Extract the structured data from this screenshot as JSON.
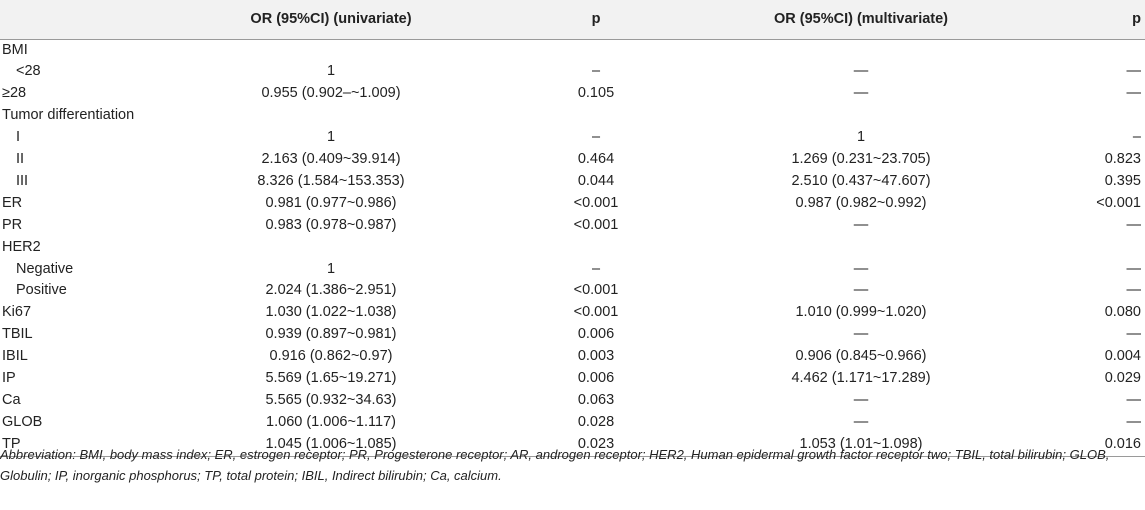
{
  "table": {
    "headers": [
      "",
      "OR (95%CI) (univariate)",
      "p",
      "OR (95%CI) (multivariate)",
      "p"
    ],
    "rows": [
      {
        "label": "BMI",
        "indent": false,
        "or_uni": "",
        "p_uni": "",
        "or_multi": "",
        "p_multi": ""
      },
      {
        "label": "<28",
        "indent": true,
        "or_uni": "1",
        "p_uni": "–",
        "or_multi": "—",
        "p_multi": "—"
      },
      {
        "label": "≥28",
        "indent": false,
        "or_uni": "0.955 (0.902–~1.009)",
        "p_uni": "0.105",
        "or_multi": "—",
        "p_multi": "—"
      },
      {
        "label": "Tumor differentiation",
        "indent": false,
        "or_uni": "",
        "p_uni": "",
        "or_multi": "",
        "p_multi": ""
      },
      {
        "label": "I",
        "indent": true,
        "or_uni": "1",
        "p_uni": "–",
        "or_multi": "1",
        "p_multi": "–"
      },
      {
        "label": "II",
        "indent": true,
        "or_uni": "2.163 (0.409~39.914)",
        "p_uni": "0.464",
        "or_multi": "1.269 (0.231~23.705)",
        "p_multi": "0.823"
      },
      {
        "label": "III",
        "indent": true,
        "or_uni": "8.326 (1.584~153.353)",
        "p_uni": "0.044",
        "or_multi": "2.510 (0.437~47.607)",
        "p_multi": "0.395"
      },
      {
        "label": "ER",
        "indent": false,
        "or_uni": "0.981 (0.977~0.986)",
        "p_uni": "<0.001",
        "or_multi": "0.987 (0.982~0.992)",
        "p_multi": "<0.001"
      },
      {
        "label": "PR",
        "indent": false,
        "or_uni": "0.983 (0.978~0.987)",
        "p_uni": "<0.001",
        "or_multi": "—",
        "p_multi": "—"
      },
      {
        "label": "HER2",
        "indent": false,
        "or_uni": "",
        "p_uni": "",
        "or_multi": "",
        "p_multi": ""
      },
      {
        "label": "Negative",
        "indent": true,
        "or_uni": "1",
        "p_uni": "–",
        "or_multi": "—",
        "p_multi": "—"
      },
      {
        "label": "Positive",
        "indent": true,
        "or_uni": "2.024 (1.386~2.951)",
        "p_uni": "<0.001",
        "or_multi": "—",
        "p_multi": "—"
      },
      {
        "label": "Ki67",
        "indent": false,
        "or_uni": "1.030 (1.022~1.038)",
        "p_uni": "<0.001",
        "or_multi": "1.010 (0.999~1.020)",
        "p_multi": "0.080"
      },
      {
        "label": "TBIL",
        "indent": false,
        "or_uni": "0.939 (0.897~0.981)",
        "p_uni": "0.006",
        "or_multi": "—",
        "p_multi": "—"
      },
      {
        "label": "IBIL",
        "indent": false,
        "or_uni": "0.916 (0.862~0.97)",
        "p_uni": "0.003",
        "or_multi": "0.906 (0.845~0.966)",
        "p_multi": "0.004"
      },
      {
        "label": "IP",
        "indent": false,
        "or_uni": "5.569 (1.65~19.271)",
        "p_uni": "0.006",
        "or_multi": "4.462 (1.171~17.289)",
        "p_multi": "0.029"
      },
      {
        "label": "Ca",
        "indent": false,
        "or_uni": "5.565 (0.932~34.63)",
        "p_uni": "0.063",
        "or_multi": "—",
        "p_multi": "—"
      },
      {
        "label": "GLOB",
        "indent": false,
        "or_uni": "1.060 (1.006~1.117)",
        "p_uni": "0.028",
        "or_multi": "—",
        "p_multi": "—"
      },
      {
        "label": "TP",
        "indent": false,
        "or_uni": "1.045 (1.006~1.085)",
        "p_uni": "0.023",
        "or_multi": "1.053 (1.01~1.098)",
        "p_multi": "0.016"
      }
    ]
  },
  "footnote": "Abbreviation: BMI, body mass index; ER, estrogen receptor; PR, Progesterone receptor; AR, androgen receptor; HER2, Human epidermal growth factor receptor two; TBIL, total bilirubin; GLOB, Globulin; IP, inorganic phosphorus; TP, total protein; IBIL, Indirect bilirubin; Ca, calcium."
}
